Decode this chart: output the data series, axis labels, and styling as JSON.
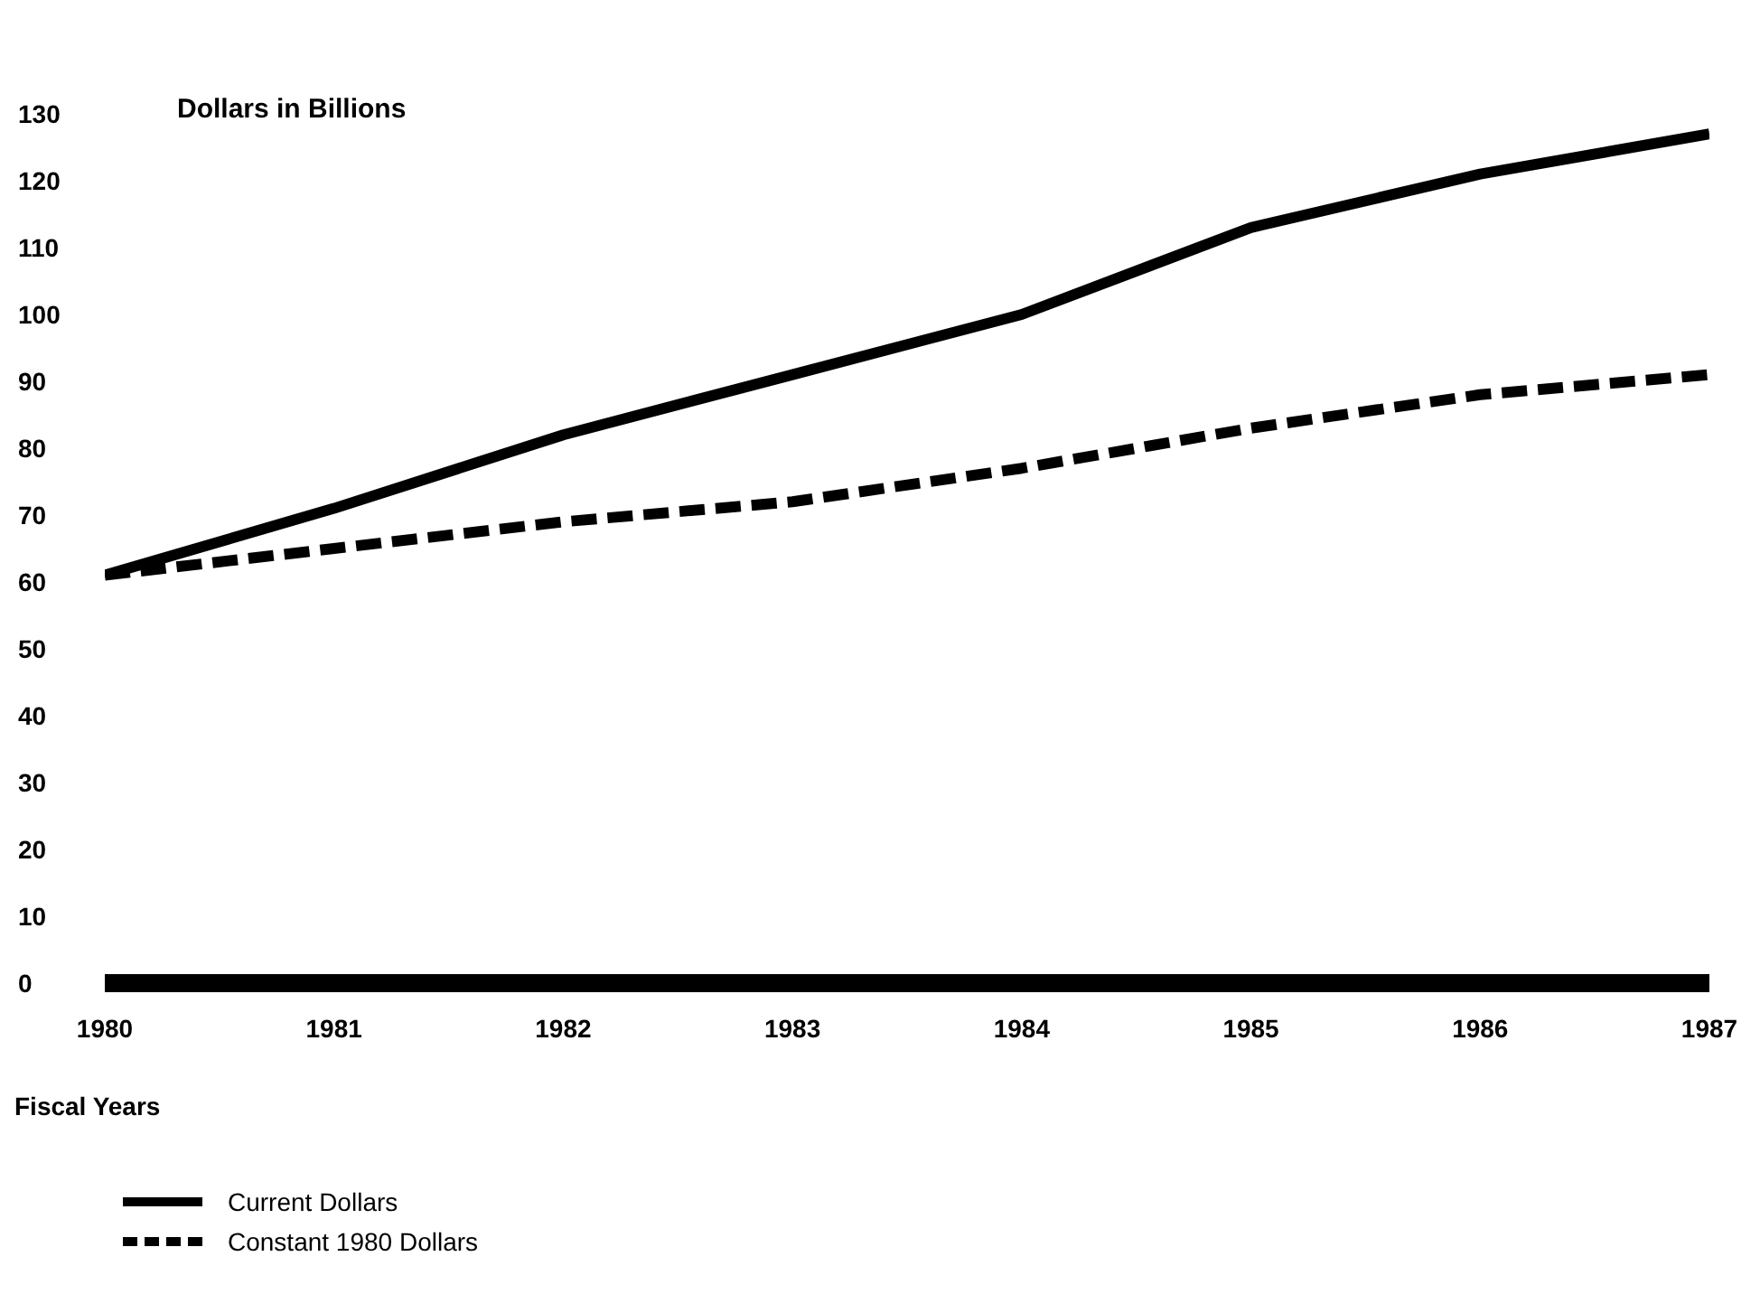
{
  "chart_data": {
    "type": "line",
    "ylabel": "Dollars in Billions",
    "xlabel": "Fiscal Years",
    "x": [
      1980,
      1981,
      1982,
      1983,
      1984,
      1985,
      1986,
      1987
    ],
    "series": [
      {
        "name": "Current Dollars",
        "color": "#000000",
        "line_style": "solid",
        "values": [
          61,
          71,
          82,
          91,
          100,
          113,
          121,
          127
        ]
      },
      {
        "name": "Constant 1980 Dollars",
        "color": "#000000",
        "line_style": "dashed",
        "values": [
          61,
          65,
          69,
          72,
          77,
          83,
          88,
          91
        ]
      }
    ],
    "xlim": [
      1980,
      1987
    ],
    "xticks": [
      1980,
      1981,
      1982,
      1983,
      1984,
      1985,
      1986,
      1987
    ],
    "ylim": [
      0,
      130
    ],
    "yticks": [
      0,
      10,
      20,
      30,
      40,
      50,
      60,
      70,
      80,
      90,
      100,
      110,
      120,
      130
    ],
    "grid": false,
    "legend": "bottom left",
    "marker": "none"
  }
}
